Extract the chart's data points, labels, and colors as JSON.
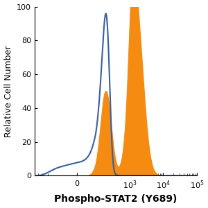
{
  "title": "",
  "xlabel": "Phospho-STAT2 (Y689)",
  "ylabel": "Relative Cell Number",
  "ylim": [
    0,
    100
  ],
  "yticks": [
    0,
    20,
    40,
    60,
    80,
    100
  ],
  "blue_color": "#3a5fa0",
  "orange_color": "#f58b10",
  "orange_fill": "#f58b10",
  "bg_color": "#ffffff",
  "xlabel_fontsize": 10,
  "xlabel_fontweight": "bold",
  "ylabel_fontsize": 9,
  "tick_fontsize": 8,
  "linthresh": 100,
  "linscale": 0.5
}
